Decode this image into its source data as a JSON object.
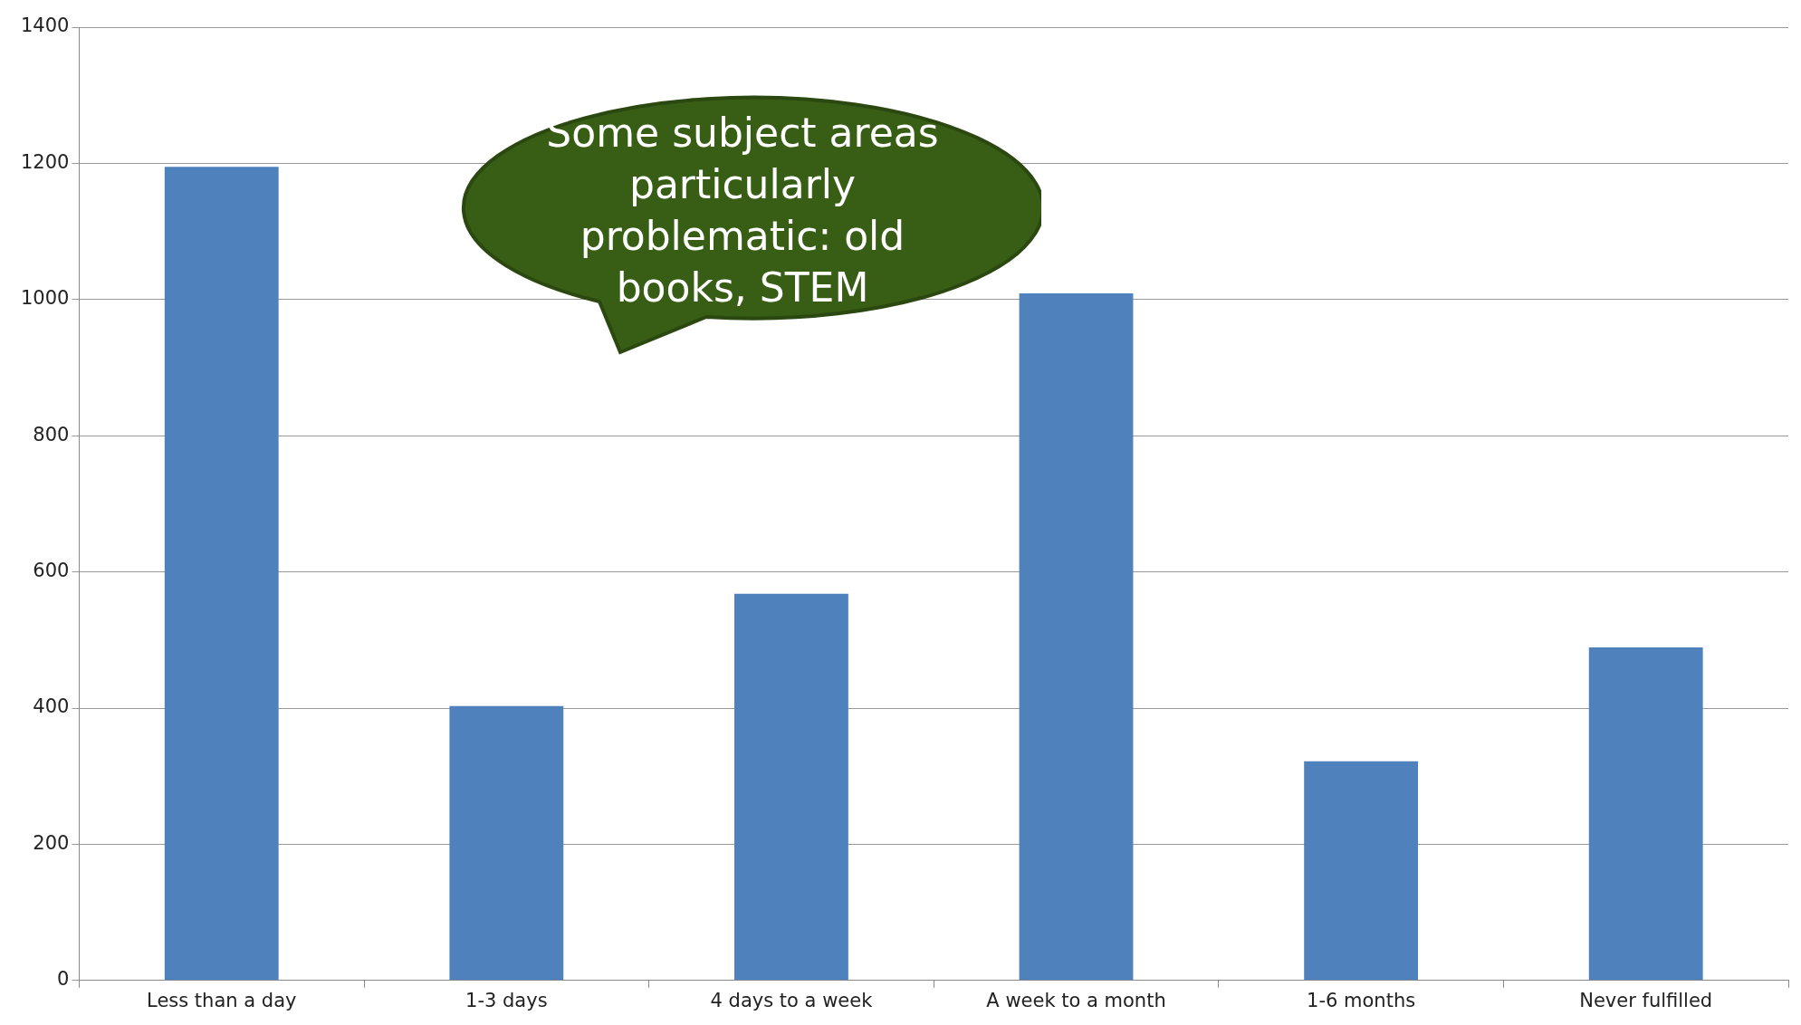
{
  "chart_data": {
    "type": "bar",
    "categories": [
      "Less than a day",
      "1-3 days",
      "4 days to a week",
      "A week to a month",
      "1-6 months",
      "Never fulfilled"
    ],
    "values": [
      1195,
      403,
      568,
      1009,
      322,
      489
    ],
    "color": "#4f81bd",
    "ylim": [
      0,
      1400
    ],
    "yticks": [
      0,
      200,
      400,
      600,
      800,
      1000,
      1200,
      1400
    ],
    "grid": "y",
    "legend": false,
    "annotations": [
      "Some subject areas particularly problematic: old books, STEM"
    ]
  }
}
